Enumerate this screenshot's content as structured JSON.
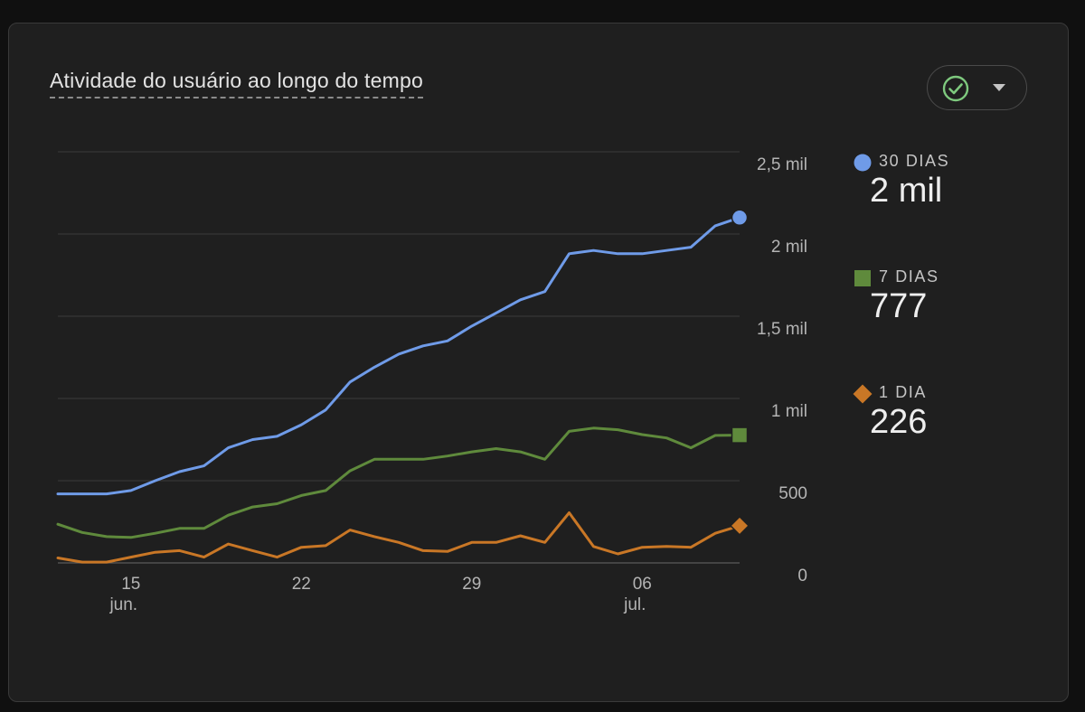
{
  "card": {
    "title": "Atividade do usuário ao longo do tempo",
    "compare_button": {
      "icons": [
        "check-circle-icon",
        "caret-down-icon"
      ]
    }
  },
  "legend": [
    {
      "label": "30 DIAS",
      "value": "2 mil",
      "color": "#6f9be8",
      "marker": "circle"
    },
    {
      "label": "7 DIAS",
      "value": "777",
      "color": "#5f8a3c",
      "marker": "square"
    },
    {
      "label": "1 DIA",
      "value": "226",
      "color": "#c97726",
      "marker": "diamond"
    }
  ],
  "chart_data": {
    "type": "line",
    "title": "Atividade do usuário ao longo do tempo",
    "x_start_date": "2024-06-12",
    "x": [
      "12 jun.",
      "13 jun.",
      "14 jun.",
      "15 jun.",
      "16 jun.",
      "17 jun.",
      "18 jun.",
      "19 jun.",
      "20 jun.",
      "21 jun.",
      "22 jun.",
      "23 jun.",
      "24 jun.",
      "25 jun.",
      "26 jun.",
      "27 jun.",
      "28 jun.",
      "29 jun.",
      "30 jun.",
      "01 jul.",
      "02 jul.",
      "03 jul.",
      "04 jul.",
      "05 jul.",
      "06 jul.",
      "07 jul.",
      "08 jul.",
      "09 jul.",
      "10 jul."
    ],
    "x_ticks": [
      {
        "index": 3,
        "label": "15",
        "sublabel": "jun."
      },
      {
        "index": 10,
        "label": "22",
        "sublabel": ""
      },
      {
        "index": 17,
        "label": "29",
        "sublabel": ""
      },
      {
        "index": 24,
        "label": "06",
        "sublabel": "jul."
      }
    ],
    "y_ticks": [
      {
        "value": 0,
        "label": "0"
      },
      {
        "value": 500,
        "label": "500"
      },
      {
        "value": 1000,
        "label": "1 mil"
      },
      {
        "value": 1500,
        "label": "1,5 mil"
      },
      {
        "value": 2000,
        "label": "2 mil"
      },
      {
        "value": 2500,
        "label": "2,5 mil"
      }
    ],
    "ylim": [
      0,
      2500
    ],
    "grid": true,
    "y_axis_position": "right",
    "legend_position": "right",
    "series": [
      {
        "name": "30 DIAS",
        "color": "#6f9be8",
        "marker": "circle",
        "values": [
          420,
          420,
          420,
          440,
          500,
          555,
          590,
          700,
          750,
          770,
          840,
          930,
          1100,
          1190,
          1270,
          1320,
          1350,
          1440,
          1520,
          1600,
          1650,
          1880,
          1900,
          1880,
          1880,
          1900,
          1920,
          2050,
          2100
        ]
      },
      {
        "name": "7 DIAS",
        "color": "#5f8a3c",
        "marker": "square",
        "values": [
          235,
          185,
          160,
          155,
          180,
          210,
          210,
          290,
          340,
          360,
          410,
          440,
          560,
          630,
          630,
          630,
          650,
          675,
          695,
          675,
          630,
          800,
          820,
          810,
          780,
          760,
          700,
          775,
          777
        ]
      },
      {
        "name": "1 DIA",
        "color": "#c97726",
        "marker": "diamond",
        "values": [
          30,
          5,
          5,
          35,
          65,
          75,
          35,
          115,
          75,
          35,
          95,
          105,
          200,
          160,
          125,
          75,
          70,
          125,
          125,
          165,
          125,
          305,
          100,
          55,
          95,
          100,
          95,
          180,
          226
        ]
      }
    ]
  }
}
